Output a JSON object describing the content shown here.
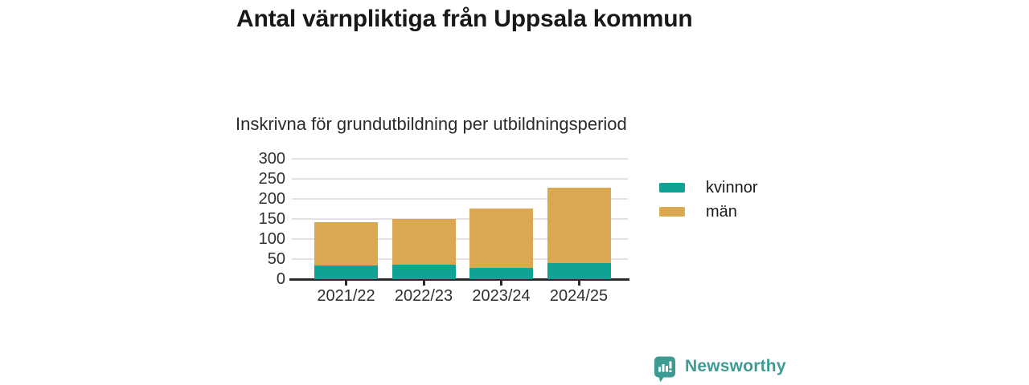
{
  "title": "Antal värnpliktiga från Uppsala kommun",
  "subtitle": "Inskrivna för grundutbildning per utbildningsperiod",
  "footer": {
    "brand": "Newsworthy",
    "logo_icon": "bar-chart-speech-bubble-icon"
  },
  "colors": {
    "kvinnor": "#0fa295",
    "man": "#d9a850",
    "brand_teal": "#3e9b94",
    "grid": "#e3e3e3",
    "axis": "#2b2b2b",
    "text": "#191919"
  },
  "chart_data": {
    "type": "bar",
    "stacked": true,
    "title": "Antal värnpliktiga från Uppsala kommun",
    "subtitle": "Inskrivna för grundutbildning per utbildningsperiod",
    "categories": [
      "2021/22",
      "2022/23",
      "2023/24",
      "2024/25"
    ],
    "series": [
      {
        "name": "kvinnor",
        "color": "#0fa295",
        "values": [
          35,
          37,
          29,
          41
        ]
      },
      {
        "name": "män",
        "color": "#d9a850",
        "values": [
          108,
          113,
          147,
          188
        ]
      }
    ],
    "totals": [
      143,
      150,
      176,
      229
    ],
    "xlabel": "",
    "ylabel": "",
    "ylim": [
      0,
      300
    ],
    "yticks": [
      0,
      50,
      100,
      150,
      200,
      250,
      300
    ],
    "grid": true,
    "legend_position": "right",
    "legend_order": [
      "kvinnor",
      "män"
    ]
  }
}
